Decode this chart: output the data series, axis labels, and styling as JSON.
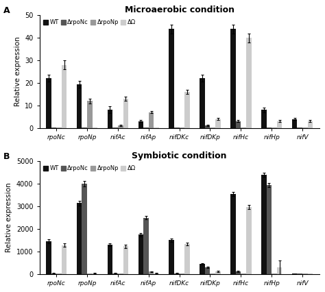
{
  "panel_A": {
    "title": "Microaerobic condition",
    "ylabel": "Relative expression",
    "ylim": [
      0,
      50
    ],
    "yticks": [
      0,
      10,
      20,
      30,
      40,
      50
    ],
    "categories": [
      "rpoNc",
      "rpoNp",
      "nifAc",
      "nifAp",
      "nifDKc",
      "nifDKp",
      "nifHc",
      "nifHp",
      "nifV"
    ],
    "series": {
      "WT": [
        22,
        19.5,
        8,
        3,
        44,
        22,
        44,
        8,
        4
      ],
      "drpoNc": [
        0.3,
        0.3,
        0.3,
        0.3,
        0.3,
        1,
        3,
        0.3,
        0.3
      ],
      "drpoNp": [
        0.3,
        12,
        1,
        7,
        0.3,
        0.3,
        0.3,
        0.3,
        0.3
      ],
      "dOmega": [
        28,
        0.3,
        13,
        0.3,
        16,
        4,
        40,
        3,
        3
      ]
    },
    "errors": {
      "WT": [
        1.5,
        1.5,
        1.5,
        0.5,
        2,
        1.5,
        2,
        1,
        0.5
      ],
      "drpoNc": [
        0,
        0,
        0,
        0,
        0,
        0.3,
        0.5,
        0,
        0
      ],
      "drpoNp": [
        0,
        1,
        0.3,
        0.5,
        0,
        0,
        0,
        0,
        0
      ],
      "dOmega": [
        2,
        0,
        1,
        0,
        1,
        0.5,
        2,
        0.5,
        0.5
      ]
    }
  },
  "panel_B": {
    "title": "Symbiotic condition",
    "ylabel": "Relative expression",
    "ylim": [
      0,
      5000
    ],
    "yticks": [
      0,
      1000,
      2000,
      3000,
      4000,
      5000
    ],
    "categories": [
      "rpoNc",
      "rpoNp",
      "nifAc",
      "nifAp",
      "nifDKc",
      "nifDKp",
      "nifHc",
      "nifHp",
      "nifV"
    ],
    "series": {
      "WT": [
        1450,
        3150,
        1300,
        1750,
        1500,
        450,
        3550,
        4400,
        10
      ],
      "drpoNc": [
        30,
        4000,
        30,
        2500,
        30,
        300,
        100,
        3950,
        10
      ],
      "drpoNp": [
        10,
        10,
        10,
        100,
        10,
        10,
        10,
        10,
        10
      ],
      "dOmega": [
        1280,
        30,
        1230,
        30,
        1330,
        100,
        2980,
        290,
        10
      ]
    },
    "errors": {
      "WT": [
        80,
        100,
        60,
        80,
        80,
        30,
        80,
        100,
        0
      ],
      "drpoNc": [
        10,
        120,
        10,
        80,
        10,
        30,
        30,
        100,
        0
      ],
      "drpoNp": [
        0,
        0,
        0,
        20,
        0,
        0,
        0,
        0,
        0
      ],
      "dOmega": [
        70,
        10,
        70,
        10,
        70,
        30,
        100,
        300,
        0
      ]
    }
  },
  "colors": {
    "WT": "#111111",
    "drpoNc": "#555555",
    "drpoNp": "#999999",
    "dOmega": "#cccccc"
  },
  "legend_labels": {
    "WT": "WT",
    "drpoNc": "ΔrpoNc",
    "drpoNp": "ΔrpoNp",
    "dOmega": "ΔΩ"
  }
}
